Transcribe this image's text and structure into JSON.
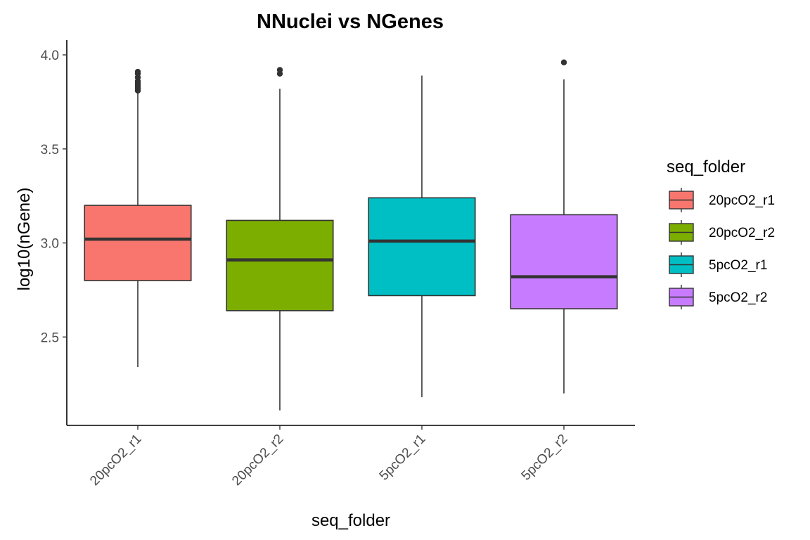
{
  "chart_data": {
    "type": "box",
    "title": "NNuclei vs NGenes",
    "xlabel": "seq_folder",
    "ylabel": "log10(nGene)",
    "ylim": [
      2.03,
      4.06
    ],
    "yticks": [
      2.5,
      3.0,
      3.5,
      4.0
    ],
    "yticklabels": [
      "2.5",
      "3.0",
      "3.5",
      "4.0"
    ],
    "grid": false,
    "legend": {
      "title": "seq_folder",
      "placement": "right"
    },
    "categories": [
      "20pcO2_r1",
      "20pcO2_r2",
      "5pcO2_r1",
      "5pcO2_r2"
    ],
    "series": [
      {
        "name": "20pcO2_r1",
        "color": "#F8766D",
        "whisker_low": 2.34,
        "q1": 2.8,
        "median": 3.02,
        "q3": 3.2,
        "whisker_high": 3.8,
        "outliers": [
          3.81,
          3.82,
          3.83,
          3.84,
          3.85,
          3.86,
          3.88,
          3.9,
          3.91
        ]
      },
      {
        "name": "20pcO2_r2",
        "color": "#7CAE00",
        "whisker_low": 2.11,
        "q1": 2.64,
        "median": 2.91,
        "q3": 3.12,
        "whisker_high": 3.82,
        "outliers": [
          3.9,
          3.92
        ]
      },
      {
        "name": "5pcO2_r1",
        "color": "#00BFC4",
        "whisker_low": 2.18,
        "q1": 2.72,
        "median": 3.01,
        "q3": 3.24,
        "whisker_high": 3.89,
        "outliers": []
      },
      {
        "name": "5pcO2_r2",
        "color": "#C77CFF",
        "whisker_low": 2.2,
        "q1": 2.65,
        "median": 2.82,
        "q3": 3.15,
        "whisker_high": 3.87,
        "outliers": [
          3.96
        ]
      }
    ]
  }
}
